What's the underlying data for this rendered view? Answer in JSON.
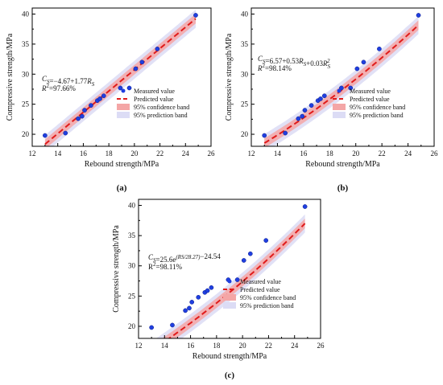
{
  "chart_data": [
    {
      "type": "scatter",
      "panel_label": "(a)",
      "xlabel": "Rebound strength/MPa",
      "ylabel": "Compressive strength/MPa",
      "xlim": [
        12,
        26
      ],
      "ylim": [
        18,
        41
      ],
      "xticks": [
        12,
        14,
        16,
        18,
        20,
        22,
        24,
        26
      ],
      "yticks": [
        20,
        25,
        30,
        35,
        40
      ],
      "equation": "CS=−4.67+1.77RS",
      "r2": "R2=97.66%",
      "fit": {
        "model": "linear",
        "a": -4.67,
        "b": 1.77
      },
      "band_halfwidth": {
        "confidence": 0.8,
        "prediction": 1.5
      },
      "series": [
        {
          "name": "Measured value",
          "kind": "points",
          "x": [
            13.0,
            14.6,
            15.6,
            15.9,
            16.1,
            16.6,
            17.1,
            17.3,
            17.6,
            18.9,
            19.6,
            20.1,
            20.6,
            21.8,
            24.8
          ],
          "y": [
            19.8,
            20.2,
            22.6,
            23.0,
            24.0,
            24.8,
            25.6,
            25.9,
            26.4,
            27.7,
            27.7,
            30.9,
            32.0,
            34.2,
            39.8
          ]
        },
        {
          "name": "Predicted value",
          "kind": "line"
        },
        {
          "name": "95% confidence band",
          "kind": "band",
          "color": "#f4a6a6"
        },
        {
          "name": "95% prediction band",
          "kind": "band",
          "color": "#dcdcf5"
        }
      ]
    },
    {
      "type": "scatter",
      "panel_label": "(b)",
      "xlabel": "Rebound strength/MPa",
      "ylabel": "Compressive strength/MPa",
      "xlim": [
        12,
        26
      ],
      "ylim": [
        18,
        41
      ],
      "xticks": [
        12,
        14,
        16,
        18,
        20,
        22,
        24,
        26
      ],
      "yticks": [
        20,
        25,
        30,
        35,
        40
      ],
      "equation": "CS=6.57+0.53RS+0.03RS2",
      "r2": "R2=98.14%",
      "fit": {
        "model": "quadratic",
        "a": 6.57,
        "b": 0.53,
        "c": 0.03
      },
      "band_halfwidth": {
        "confidence": 0.8,
        "prediction": 1.5
      },
      "series": [
        {
          "name": "Measured value",
          "kind": "points",
          "x": [
            13.0,
            14.6,
            15.6,
            15.9,
            16.1,
            16.6,
            17.1,
            17.3,
            17.6,
            18.9,
            19.6,
            20.1,
            20.6,
            21.8,
            24.8
          ],
          "y": [
            19.8,
            20.2,
            22.6,
            23.0,
            24.0,
            24.8,
            25.6,
            25.9,
            26.4,
            27.7,
            27.7,
            30.9,
            32.0,
            34.2,
            39.8
          ]
        },
        {
          "name": "Predicted value",
          "kind": "line"
        },
        {
          "name": "95% confidence band",
          "kind": "band",
          "color": "#f4a6a6"
        },
        {
          "name": "95% prediction band",
          "kind": "band",
          "color": "#dcdcf5"
        }
      ]
    },
    {
      "type": "scatter",
      "panel_label": "(c)",
      "xlabel": "Rebound strength/MPa",
      "ylabel": "Compressive strength/MPa",
      "xlim": [
        12,
        26
      ],
      "ylim": [
        18,
        41
      ],
      "xticks": [
        12,
        14,
        16,
        18,
        20,
        22,
        24,
        26
      ],
      "yticks": [
        20,
        25,
        30,
        35,
        40
      ],
      "equation": "CS=25.6e(RS/28.27)−24.54",
      "r2": "R2=98.11%",
      "fit": {
        "model": "exponential",
        "a": 25.6,
        "b": 28.27,
        "c": -24.54
      },
      "band_halfwidth": {
        "confidence": 0.8,
        "prediction": 1.5
      },
      "series": [
        {
          "name": "Measured value",
          "kind": "points",
          "x": [
            13.0,
            14.6,
            15.6,
            15.9,
            16.1,
            16.6,
            17.1,
            17.3,
            17.6,
            18.9,
            19.6,
            20.1,
            20.6,
            21.8,
            24.8
          ],
          "y": [
            19.8,
            20.2,
            22.6,
            23.0,
            24.0,
            24.8,
            25.6,
            25.9,
            26.4,
            27.7,
            27.7,
            30.9,
            32.0,
            34.2,
            39.8
          ]
        },
        {
          "name": "Predicted value",
          "kind": "line"
        },
        {
          "name": "95% confidence band",
          "kind": "band",
          "color": "#f4a6a6"
        },
        {
          "name": "95% prediction band",
          "kind": "band",
          "color": "#dcdcf5"
        }
      ]
    }
  ]
}
